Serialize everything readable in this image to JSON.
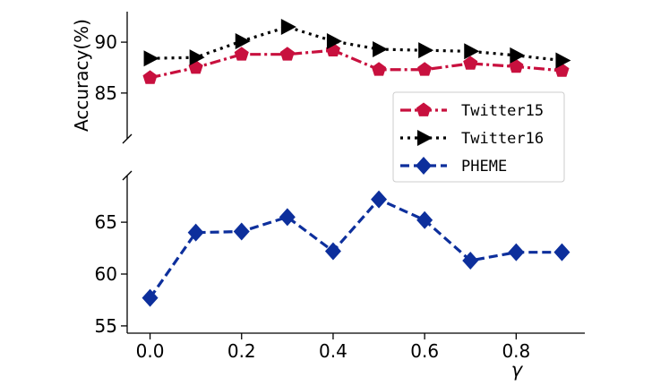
{
  "chart_data": {
    "type": "line",
    "xlabel": "γ",
    "ylabel": "Accuracy(%)",
    "x": [
      0.0,
      0.1,
      0.2,
      0.3,
      0.4,
      0.5,
      0.6,
      0.7,
      0.8,
      0.9
    ],
    "x_ticks": [
      "0.0",
      "0.2",
      "0.4",
      "0.6",
      "0.8"
    ],
    "xlim": [
      -0.05,
      0.95
    ],
    "broken_y_axis": true,
    "upper_panel": {
      "ylim": [
        80.5,
        93
      ],
      "y_ticks": [
        "85",
        "90"
      ],
      "series": [
        {
          "name": "Twitter15",
          "color": "#c8103e",
          "marker": "pentagon",
          "line_style": "dash-dot",
          "values": [
            86.5,
            87.5,
            88.8,
            88.8,
            89.2,
            87.3,
            87.3,
            87.9,
            87.6,
            87.2
          ]
        },
        {
          "name": "Twitter16",
          "color": "#000000",
          "marker": "triangle-right",
          "line_style": "dotted",
          "values": [
            88.4,
            88.5,
            90.1,
            91.5,
            90.1,
            89.3,
            89.2,
            89.1,
            88.7,
            88.2
          ]
        }
      ]
    },
    "lower_panel": {
      "ylim": [
        54.3,
        69.5
      ],
      "y_ticks": [
        "55",
        "60",
        "65"
      ],
      "series": [
        {
          "name": "PHEME",
          "color": "#0d2f9c",
          "marker": "diamond",
          "line_style": "dashed",
          "values": [
            57.7,
            64.0,
            64.1,
            65.5,
            62.2,
            67.2,
            65.2,
            61.3,
            62.1,
            62.1
          ]
        }
      ]
    },
    "legend": {
      "placement": "upper-panel-bottom-right",
      "entries": [
        "Twitter15",
        "Twitter16",
        "PHEME"
      ]
    },
    "grid": false
  }
}
